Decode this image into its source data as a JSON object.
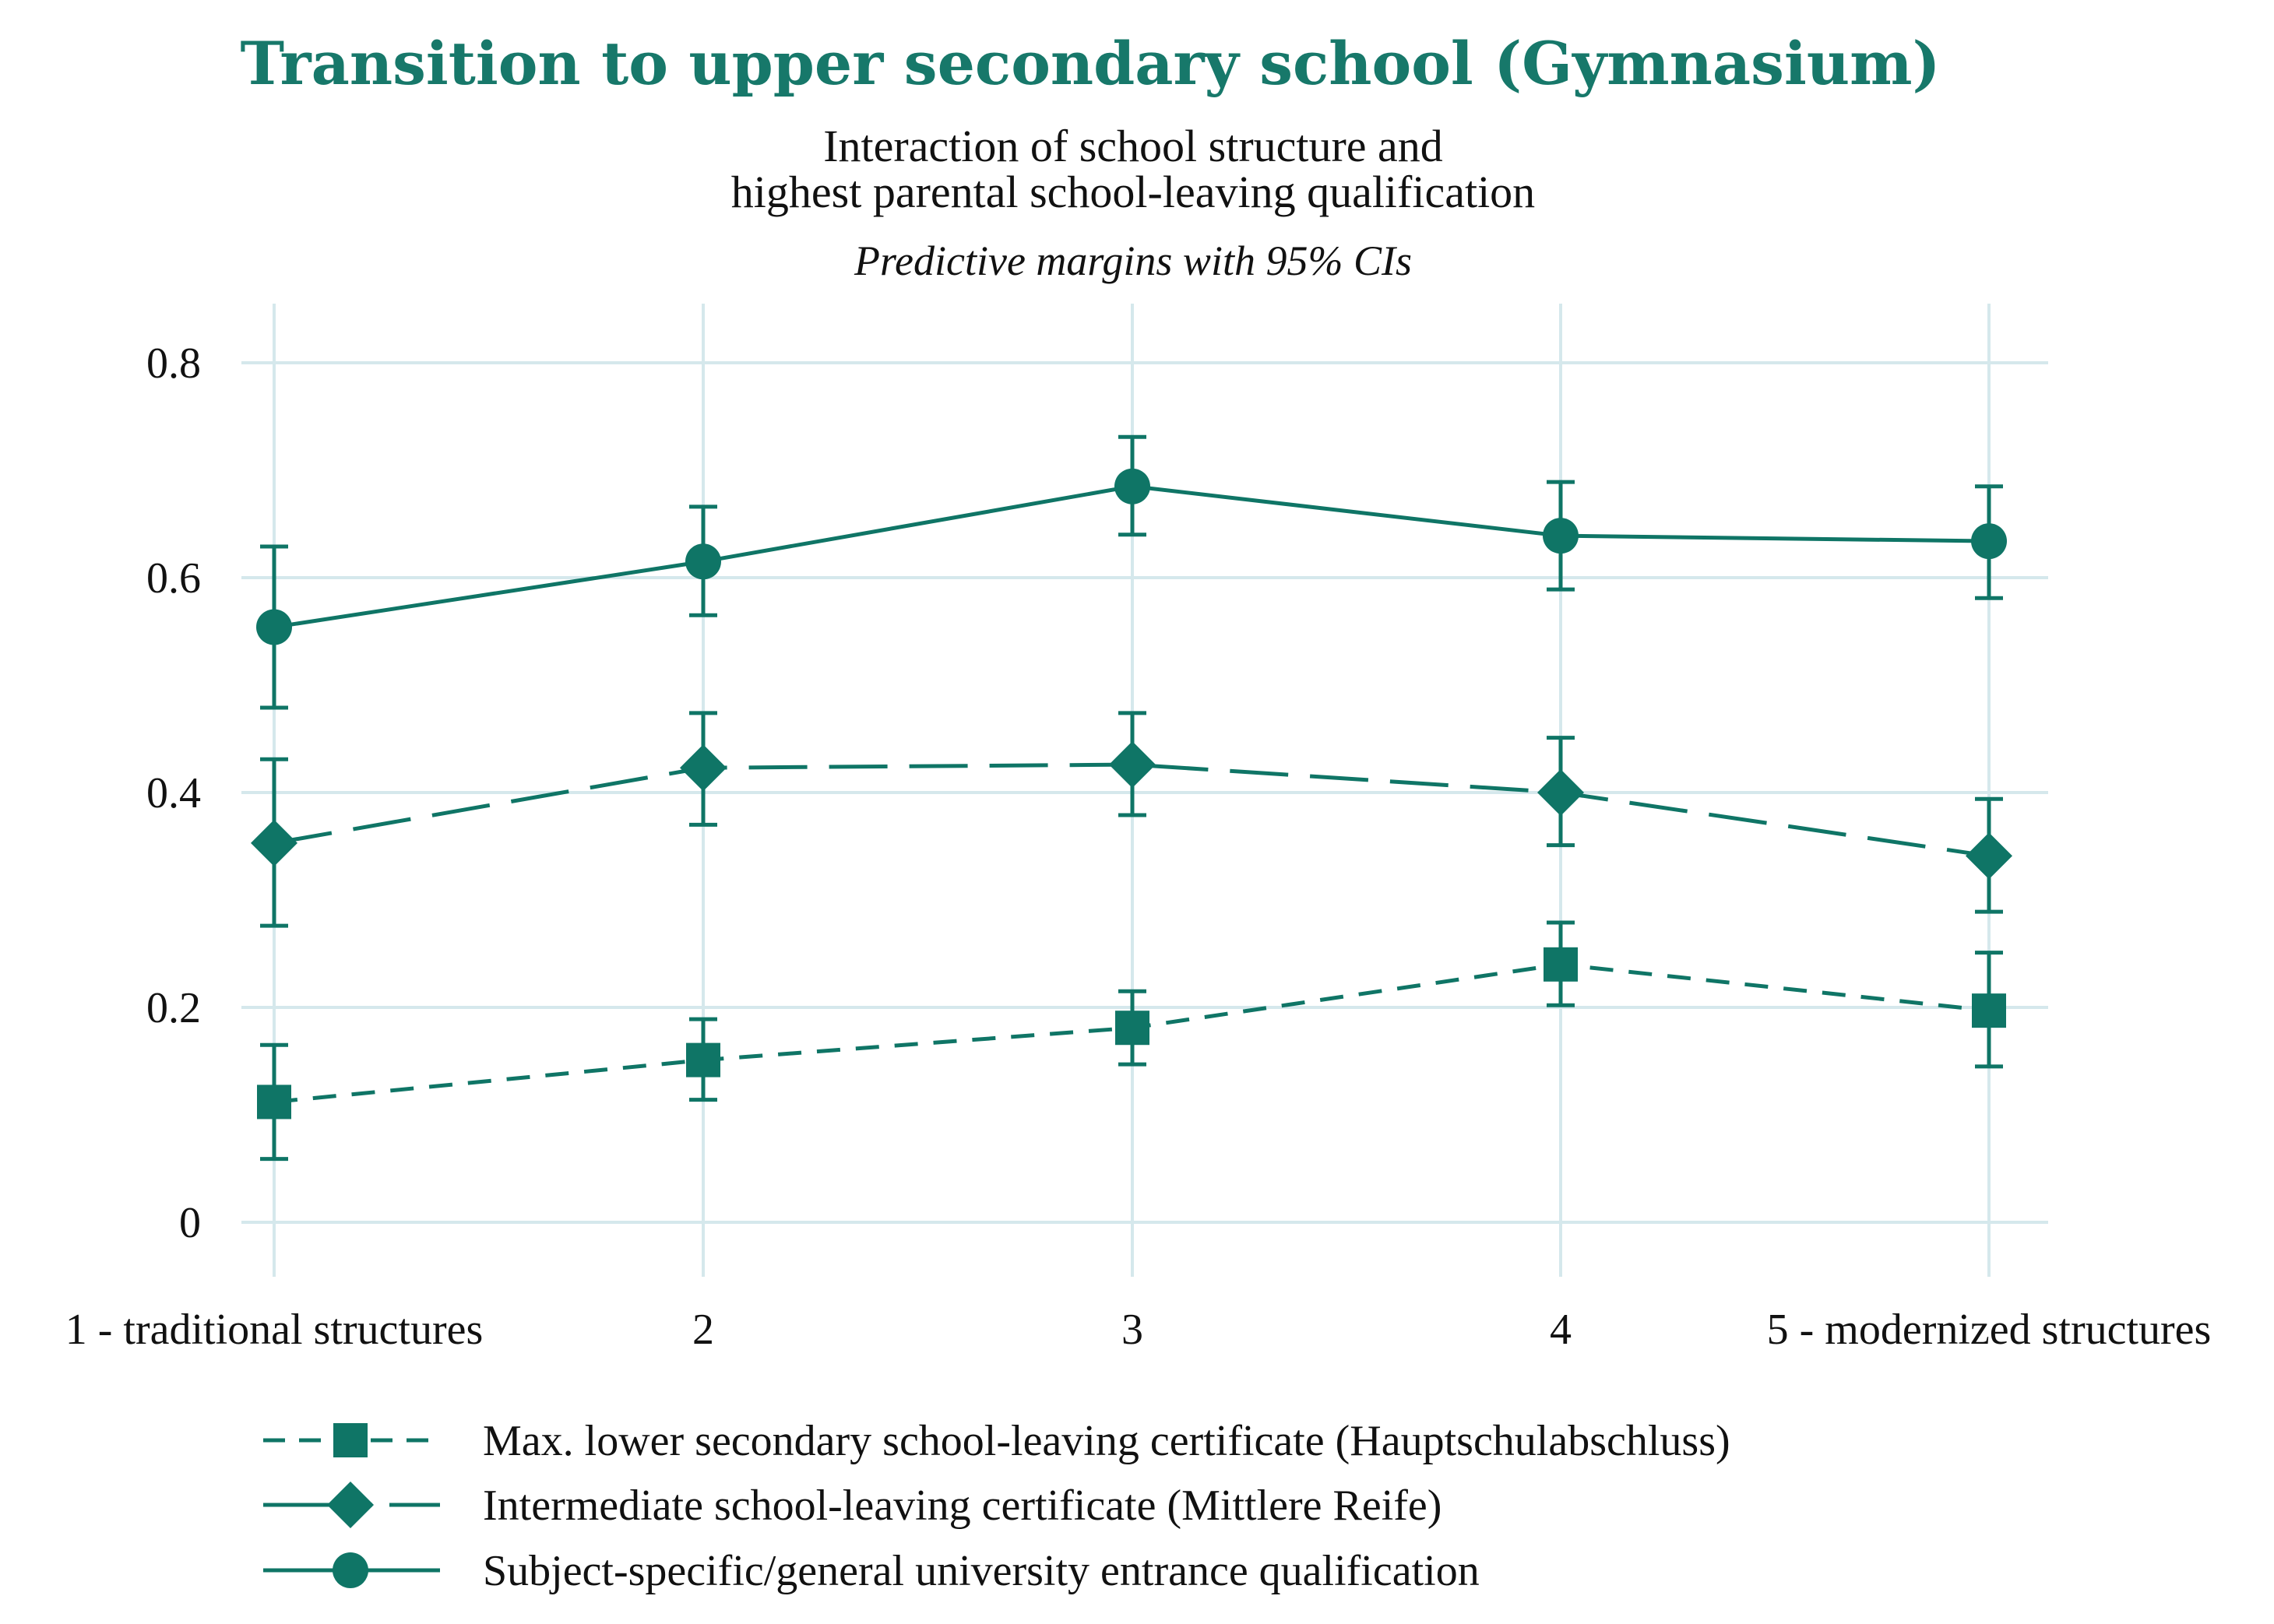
{
  "chart_data": {
    "type": "line",
    "title": "Transition to upper secondary school (Gymnasium)",
    "subtitle_lines": [
      "Interaction of school structure and",
      "highest parental school-leaving qualification"
    ],
    "note": "Predictive margins with 95% CIs",
    "x": [
      1,
      2,
      3,
      4,
      5
    ],
    "x_tick_labels": [
      "1 - traditional structures",
      "2",
      "3",
      "4",
      "5 - modernized structures"
    ],
    "y_ticks": [
      0,
      0.2,
      0.4,
      0.6,
      0.8
    ],
    "y_tick_labels": [
      "0",
      "0.2",
      "0.4",
      "0.6",
      "0.8"
    ],
    "ylim": [
      0,
      0.8
    ],
    "grid": true,
    "legend_position": "bottom",
    "series": [
      {
        "name": "Max. lower secondary school-leaving certificate (Hauptschulabschluss)",
        "marker": "square",
        "line_style": "short-dash",
        "values": [
          0.112,
          0.151,
          0.181,
          0.24,
          0.197
        ],
        "ci_lower": [
          0.059,
          0.114,
          0.147,
          0.202,
          0.145
        ],
        "ci_upper": [
          0.165,
          0.189,
          0.215,
          0.279,
          0.251
        ]
      },
      {
        "name": "Intermediate school-leaving certificate (Mittlere Reife)",
        "marker": "diamond",
        "line_style": "long-dash",
        "values": [
          0.353,
          0.423,
          0.426,
          0.4,
          0.341
        ],
        "ci_lower": [
          0.276,
          0.37,
          0.379,
          0.351,
          0.289
        ],
        "ci_upper": [
          0.431,
          0.474,
          0.474,
          0.451,
          0.394
        ]
      },
      {
        "name": "Subject-specific/general university entrance qualification",
        "marker": "circle",
        "line_style": "solid",
        "values": [
          0.554,
          0.615,
          0.685,
          0.639,
          0.634
        ],
        "ci_lower": [
          0.479,
          0.565,
          0.64,
          0.589,
          0.581
        ],
        "ci_upper": [
          0.629,
          0.666,
          0.731,
          0.689,
          0.685
        ]
      }
    ],
    "colors": {
      "series": "#0f7566",
      "title": "#17786a",
      "grid": "#d5e8ec",
      "text": "#111111"
    }
  }
}
